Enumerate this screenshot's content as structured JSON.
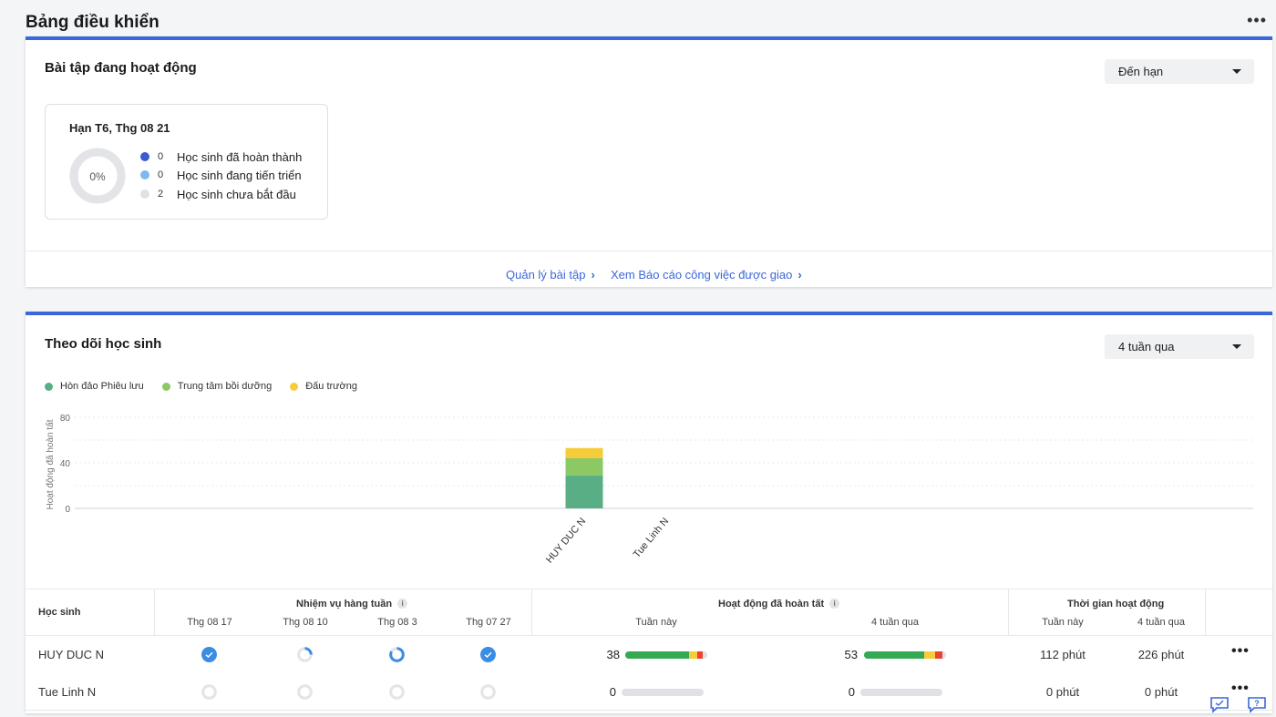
{
  "page": {
    "title": "Bảng điều khiển",
    "more_label": "•••"
  },
  "assignments": {
    "title": "Bài tập đang hoạt động",
    "filter": "Đến hạn",
    "due_label": "Hạn T6, Thg 08 21",
    "percent_complete": "0%",
    "legend": [
      {
        "count": "0",
        "label": "Học sinh đã hoàn thành",
        "color": "#3b5bd1"
      },
      {
        "count": "0",
        "label": "Học sinh đang tiến triển",
        "color": "#7fb8ef"
      },
      {
        "count": "2",
        "label": "Học sinh chưa bắt đầu",
        "color": "#dfe1e4"
      }
    ],
    "links": {
      "manage": "Quản lý bài tập",
      "report": "Xem Báo cáo công việc được giao"
    }
  },
  "tracking": {
    "title": "Theo dõi học sinh",
    "filter": "4 tuần qua"
  },
  "chart_data": {
    "type": "bar",
    "stacked": true,
    "categories": [
      "HUY DUC N",
      "Tue Linh N"
    ],
    "series": [
      {
        "name": "Hòn đảo Phiêu lưu",
        "color": "#5aae86",
        "values": [
          29,
          0
        ]
      },
      {
        "name": "Trung tâm bồi dưỡng",
        "color": "#8cc864",
        "values": [
          15,
          0
        ]
      },
      {
        "name": "Đấu trường",
        "color": "#f6cc3a",
        "values": [
          9,
          0
        ]
      }
    ],
    "ylabel": "Hoạt động đã hoàn tất",
    "ylim": [
      0,
      80
    ],
    "yticks": [
      "80",
      "40",
      "0"
    ],
    "grid": true,
    "legend_position": "top-left"
  },
  "table": {
    "headers": {
      "student": "Học sinh",
      "weekly_tasks": "Nhiệm vụ hàng tuần",
      "weeks": [
        "Thg 08 17",
        "Thg 08 10",
        "Thg 08 3",
        "Thg 07 27"
      ],
      "activities": "Hoạt động đã hoàn tất",
      "this_week": "Tuần này",
      "last_4_weeks": "4 tuần qua",
      "active_time": "Thời gian hoạt động",
      "time_this_week": "Tuần này",
      "time_4_weeks": "4 tuần qua"
    },
    "rows": [
      {
        "name": "HUY DUC N",
        "weekly_status": [
          "complete",
          "partial-low",
          "partial-high",
          "complete"
        ],
        "activities_week": "38",
        "activities_4w": "53",
        "bar_week": [
          0.78,
          0.1,
          0.06
        ],
        "bar_4w": [
          0.73,
          0.14,
          0.09
        ],
        "time_week": "112 phút",
        "time_4w": "226 phút"
      },
      {
        "name": "Tue Linh N",
        "weekly_status": [
          "none",
          "none",
          "none",
          "none"
        ],
        "activities_week": "0",
        "activities_4w": "0",
        "bar_week": [
          0,
          0,
          0
        ],
        "bar_4w": [
          0,
          0,
          0
        ],
        "time_week": "0 phút",
        "time_4w": "0 phút"
      }
    ],
    "bar_colors": [
      "#34a853",
      "#f6cc3a",
      "#ea4335"
    ]
  }
}
